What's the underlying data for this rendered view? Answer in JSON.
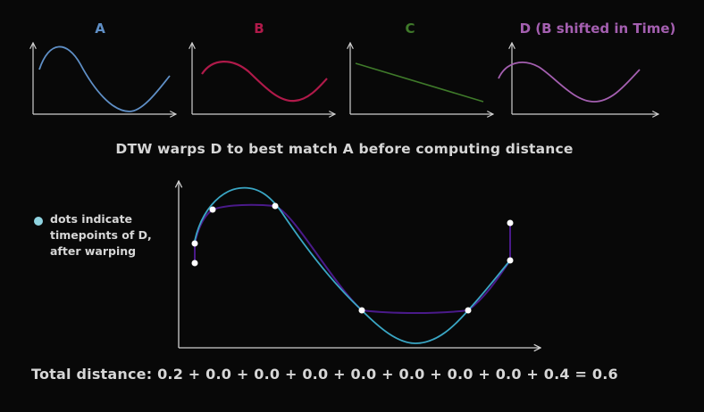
{
  "panels": [
    {
      "title": "A",
      "color": "#5f8fc6"
    },
    {
      "title": "B",
      "color": "#b01a4a"
    },
    {
      "title": "C",
      "color": "#3f7a2a"
    },
    {
      "title": "D (B shifted in Time)",
      "color": "#a45fb0"
    }
  ],
  "caption": "DTW warps D to best match A before computing distance",
  "legend": {
    "text": "dots indicate\ntimepoints of D,\nafter warping",
    "dot_color": "#8fd3e0"
  },
  "main_plot": {
    "curve_a_color": "#3aa6c4",
    "warped_d_color": "#4a1a8a",
    "dot_color": "#ffffff"
  },
  "total_distance": "Total distance: 0.2 + 0.0 + 0.0 + 0.0 + 0.0 + 0.0 + 0.0 + 0.0 + 0.4 =  0.6"
}
